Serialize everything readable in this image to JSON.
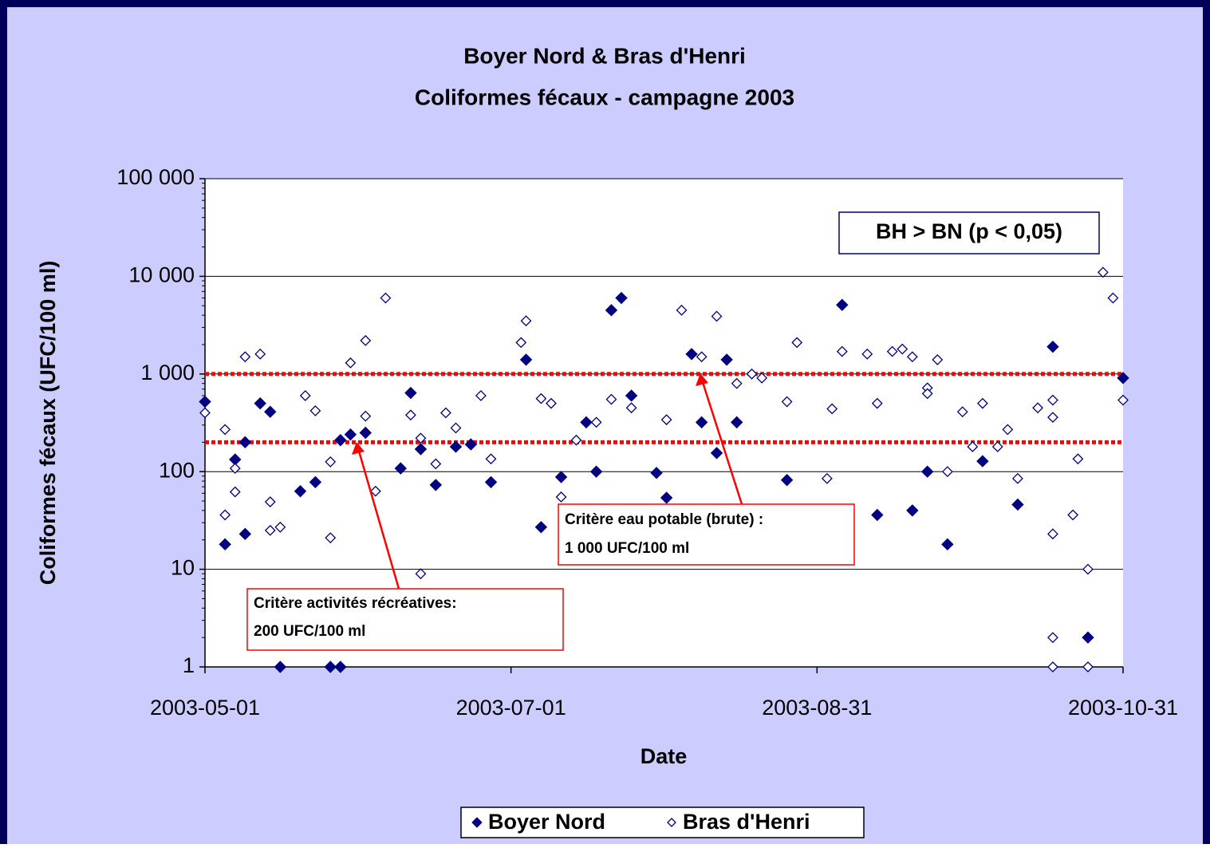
{
  "chart_data": {
    "type": "scatter",
    "title": [
      "Boyer Nord & Bras d'Henri",
      "Coliformes fécaux - campagne 2003"
    ],
    "x_label": "Date",
    "y_label": "Coliformes fécaux (UFC/100 ml)",
    "xlim": [
      "2003-05-01",
      "2003-10-31"
    ],
    "xticks": [
      "2003-05-01",
      "2003-07-01",
      "2003-08-31",
      "2003-10-31"
    ],
    "ylim": [
      1,
      100000
    ],
    "log_y": true,
    "yticks": [
      {
        "value": 100000,
        "label": "100 000"
      },
      {
        "value": 10000,
        "label": "10 000"
      },
      {
        "value": 1000,
        "label": "1 000"
      },
      100,
      10,
      1
    ],
    "grid": true,
    "legend": "bottom",
    "hlines": [
      {
        "value": 1000,
        "color": "#ff0000"
      },
      {
        "value": 200,
        "color": "#ff0000"
      }
    ],
    "annotations": [
      {
        "text": [
          "Critère eau potable (brute) :",
          "1 000 UFC/100 ml"
        ]
      },
      {
        "text": [
          "Critère activités récréatives:",
          "200 UFC/100 ml"
        ]
      }
    ],
    "stat_note": "BH > BN (p < 0,05)",
    "series": [
      {
        "name": "Boyer Nord",
        "color": "#000080",
        "marker": "filled-diamond",
        "x": [
          "2003-05-01",
          "2003-05-05",
          "2003-05-07",
          "2003-05-09",
          "2003-05-09",
          "2003-05-12",
          "2003-05-14",
          "2003-05-16",
          "2003-05-20",
          "2003-05-23",
          "2003-05-26",
          "2003-05-28",
          "2003-05-28",
          "2003-05-30",
          "2003-06-02",
          "2003-06-09",
          "2003-06-11",
          "2003-06-13",
          "2003-06-16",
          "2003-06-20",
          "2003-06-23",
          "2003-06-27",
          "2003-07-04",
          "2003-07-07",
          "2003-07-11",
          "2003-07-16",
          "2003-07-18",
          "2003-07-21",
          "2003-07-23",
          "2003-07-25",
          "2003-07-30",
          "2003-08-01",
          "2003-08-06",
          "2003-08-08",
          "2003-08-11",
          "2003-08-13",
          "2003-08-15",
          "2003-08-25",
          "2003-09-05",
          "2003-09-12",
          "2003-09-19",
          "2003-09-22",
          "2003-09-26",
          "2003-10-03",
          "2003-10-10",
          "2003-10-17",
          "2003-10-24",
          "2003-10-31"
        ],
        "values": [
          520,
          18,
          133,
          200,
          23,
          500,
          410,
          1,
          63,
          78,
          1,
          1,
          210,
          240,
          250,
          108,
          640,
          170,
          73,
          180,
          190,
          78,
          1400,
          27,
          88,
          320,
          100,
          4500,
          6000,
          600,
          97,
          54,
          1600,
          320,
          155,
          1400,
          320,
          82,
          5100,
          36,
          40,
          100,
          18,
          128,
          46,
          1900,
          2,
          910
        ]
      },
      {
        "name": "Bras d'Henri",
        "color": "#000080",
        "marker": "open-diamond",
        "x": [
          "2003-05-01",
          "2003-05-05",
          "2003-05-05",
          "2003-05-07",
          "2003-05-07",
          "2003-05-09",
          "2003-05-12",
          "2003-05-14",
          "2003-05-14",
          "2003-05-16",
          "2003-05-21",
          "2003-05-23",
          "2003-05-26",
          "2003-05-26",
          "2003-05-30",
          "2003-06-02",
          "2003-06-02",
          "2003-06-04",
          "2003-06-06",
          "2003-06-11",
          "2003-06-13",
          "2003-06-13",
          "2003-06-16",
          "2003-06-18",
          "2003-06-20",
          "2003-06-25",
          "2003-06-27",
          "2003-07-03",
          "2003-07-04",
          "2003-07-07",
          "2003-07-09",
          "2003-07-11",
          "2003-07-14",
          "2003-07-18",
          "2003-07-21",
          "2003-07-25",
          "2003-08-01",
          "2003-08-04",
          "2003-08-08",
          "2003-08-11",
          "2003-08-15",
          "2003-08-18",
          "2003-08-20",
          "2003-08-25",
          "2003-08-27",
          "2003-09-02",
          "2003-09-03",
          "2003-09-05",
          "2003-09-10",
          "2003-09-12",
          "2003-09-15",
          "2003-09-17",
          "2003-09-19",
          "2003-09-22",
          "2003-09-22",
          "2003-09-24",
          "2003-09-26",
          "2003-09-29",
          "2003-10-01",
          "2003-10-03",
          "2003-10-06",
          "2003-10-08",
          "2003-10-10",
          "2003-10-14",
          "2003-10-17",
          "2003-10-17",
          "2003-10-17",
          "2003-10-17",
          "2003-10-17",
          "2003-10-21",
          "2003-10-22",
          "2003-10-24",
          "2003-10-24",
          "2003-10-27",
          "2003-10-29",
          "2003-10-31"
        ],
        "values": [
          400,
          270,
          36,
          108,
          62,
          1500,
          1600,
          49,
          25,
          27,
          600,
          420,
          126,
          21,
          1300,
          2200,
          370,
          63,
          6000,
          380,
          220,
          9,
          120,
          400,
          280,
          600,
          135,
          2100,
          3500,
          560,
          500,
          55,
          210,
          320,
          550,
          450,
          340,
          4500,
          1500,
          3900,
          800,
          1000,
          910,
          520,
          2100,
          85,
          440,
          1700,
          1600,
          500,
          1700,
          1800,
          1500,
          720,
          630,
          1400,
          100,
          410,
          180,
          500,
          180,
          270,
          85,
          450,
          540,
          360,
          23,
          2,
          1,
          36,
          135,
          10,
          1,
          11000,
          6000,
          540
        ]
      }
    ]
  }
}
